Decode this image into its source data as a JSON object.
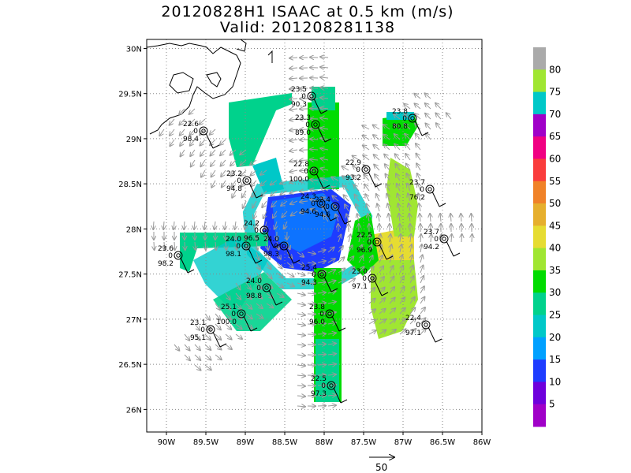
{
  "title_line1": "20120828H1 ISAAC at 0.5 km (m/s)",
  "title_line2": "Valid: 201208281138",
  "map": {
    "lon_range": [
      -90.25,
      -86.0
    ],
    "lat_range": [
      25.75,
      30.1
    ],
    "lon_ticks": [
      "90W",
      "89.5W",
      "89W",
      "88.5W",
      "88W",
      "87.5W",
      "87W",
      "86.5W",
      "86W"
    ],
    "lat_ticks": [
      "26N",
      "26.5N",
      "27N",
      "27.5N",
      "28N",
      "28.5N",
      "29N",
      "29.5N",
      "30N"
    ],
    "lon_tick_values": [
      -90,
      -89.5,
      -89,
      -88.5,
      -88,
      -87.5,
      -87,
      -86.5,
      -86
    ],
    "lat_tick_values": [
      26,
      26.5,
      27,
      27.5,
      28,
      28.5,
      29,
      29.5,
      30
    ],
    "grid": "dotted",
    "coastline_color": "#000000"
  },
  "colorbar": {
    "labels": [
      "5",
      "10",
      "15",
      "20",
      "25",
      "30",
      "35",
      "40",
      "45",
      "50",
      "55",
      "60",
      "65",
      "70",
      "75",
      "80"
    ],
    "colors": [
      "#a000c8",
      "#6e00dc",
      "#1e3cff",
      "#00a0ff",
      "#00c8c8",
      "#00d28c",
      "#00dc00",
      "#a0e632",
      "#e6dc32",
      "#e6af2d",
      "#f08228",
      "#fa3c3c",
      "#f00082",
      "#a000c8",
      "#00c8c8",
      "#a0e632",
      "#aaaaaa"
    ]
  },
  "reference_vector": {
    "label": "50"
  },
  "stations": [
    {
      "top": "23.5",
      "bottom": "90.3"
    },
    {
      "top": "23.3",
      "bottom": "89.0"
    },
    {
      "top": "22.6",
      "bottom": "98.4"
    },
    {
      "top": "23.8",
      "bottom": "80.8"
    },
    {
      "top": "22.8",
      "bottom": "100.0"
    },
    {
      "top": "22.9",
      "bottom": "93.2"
    },
    {
      "top": "23.2",
      "bottom": "94.8"
    },
    {
      "top": "23.7",
      "bottom": "76.2"
    },
    {
      "top": "24.3",
      "bottom": "94.6"
    },
    {
      "top": "22.4",
      "bottom": "94.6"
    },
    {
      "top": "23.7",
      "bottom": "94.2"
    },
    {
      "top": "24.2",
      "bottom": "96.5"
    },
    {
      "top": "24.0",
      "bottom": "98.1"
    },
    {
      "top": "22.5",
      "bottom": "96.9"
    },
    {
      "top": "23.6",
      "bottom": "98.2"
    },
    {
      "top": "24.0",
      "bottom": "98.3"
    },
    {
      "top": "25.4",
      "bottom": "94.3"
    },
    {
      "top": "24.0",
      "bottom": "98.8"
    },
    {
      "top": "23.0",
      "bottom": "97.1"
    },
    {
      "top": "25.1",
      "bottom": "100.0"
    },
    {
      "top": "23.8",
      "bottom": "96.0"
    },
    {
      "top": "23.1",
      "bottom": "95.1"
    },
    {
      "top": "22.4",
      "bottom": "97.1"
    },
    {
      "top": "22.5",
      "bottom": "97.3"
    }
  ]
}
